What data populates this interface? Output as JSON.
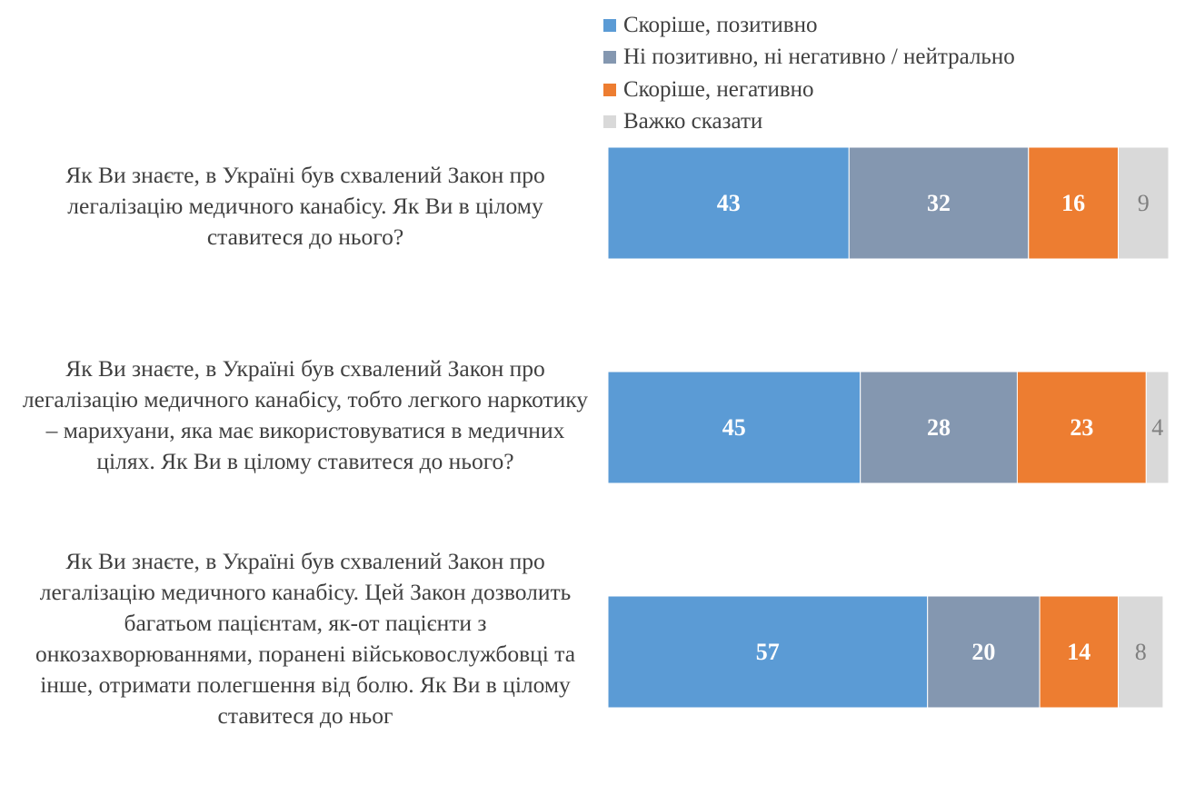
{
  "chart_data": {
    "type": "bar",
    "orientation": "horizontal",
    "stacked": true,
    "categories": [
      "Як Ви знаєте, в Україні був схвалений Закон про легалізацію медичного канабісу. Як Ви в цілому ставитеся до нього?",
      "Як Ви знаєте, в Україні був схвалений Закон про легалізацію медичного канабісу, тобто легкого наркотику – марихуани, яка має використовуватися в медичних цілях. Як Ви в цілому ставитеся до нього?",
      "Як Ви знаєте, в Україні був схвалений Закон про легалізацію медичного канабісу. Цей Закон дозволить багатьом пацієнтам, як-от пацієнти з онкозахворюваннями, поранені військовослужбовці та інше, отримати полегшення від болю. Як Ви в цілому ставитеся до ньог"
    ],
    "series": [
      {
        "name": "Скоріше, позитивно",
        "color": "#5b9bd5",
        "label_color": "#ffffff",
        "bold": true,
        "values": [
          43,
          45,
          57
        ]
      },
      {
        "name": "Ні позитивно, ні негативно / нейтрально",
        "color": "#8497b0",
        "label_color": "#ffffff",
        "bold": true,
        "values": [
          32,
          28,
          20
        ]
      },
      {
        "name": "Скоріше, негативно",
        "color": "#ed7d31",
        "label_color": "#ffffff",
        "bold": true,
        "values": [
          16,
          23,
          14
        ]
      },
      {
        "name": "Важко сказати",
        "color": "#d9d9d9",
        "label_color": "#7f7f7f",
        "bold": false,
        "values": [
          9,
          4,
          8
        ]
      }
    ],
    "xlim": [
      0,
      100
    ],
    "grid": false,
    "legend_position": "top-right"
  }
}
